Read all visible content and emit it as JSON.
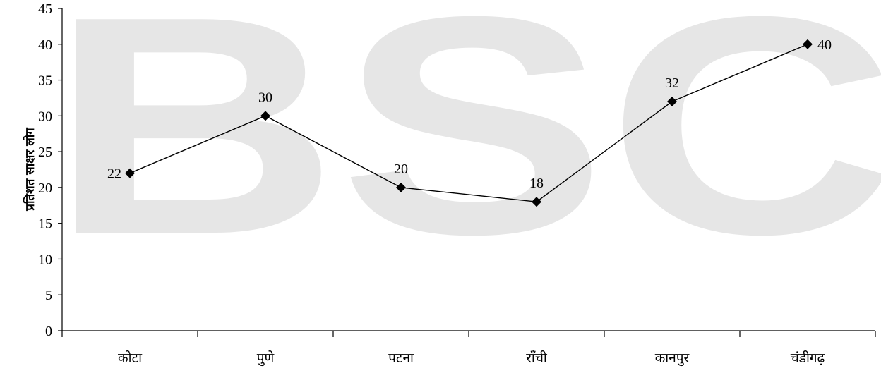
{
  "watermark": "BSC",
  "chart_data": {
    "type": "line",
    "title": "",
    "xlabel": "",
    "ylabel": "प्रतिशत साक्षर लोग",
    "categories": [
      "कोटा",
      "पुणे",
      "पटना",
      "राँची",
      "कानपुर",
      "चंडीगढ़"
    ],
    "series": [
      {
        "values": [
          22,
          30,
          20,
          18,
          32,
          40
        ]
      }
    ],
    "data_labels": [
      "22",
      "30",
      "20",
      "18",
      "32",
      "40"
    ],
    "ylim": [
      0,
      45
    ],
    "yticks": [
      "0",
      "5",
      "10",
      "15",
      "20",
      "25",
      "30",
      "35",
      "40",
      "45"
    ],
    "grid": false,
    "legend": "none",
    "colors": {
      "line": "#000000",
      "marker": "#000000",
      "watermark": "#e6e6e6"
    }
  }
}
